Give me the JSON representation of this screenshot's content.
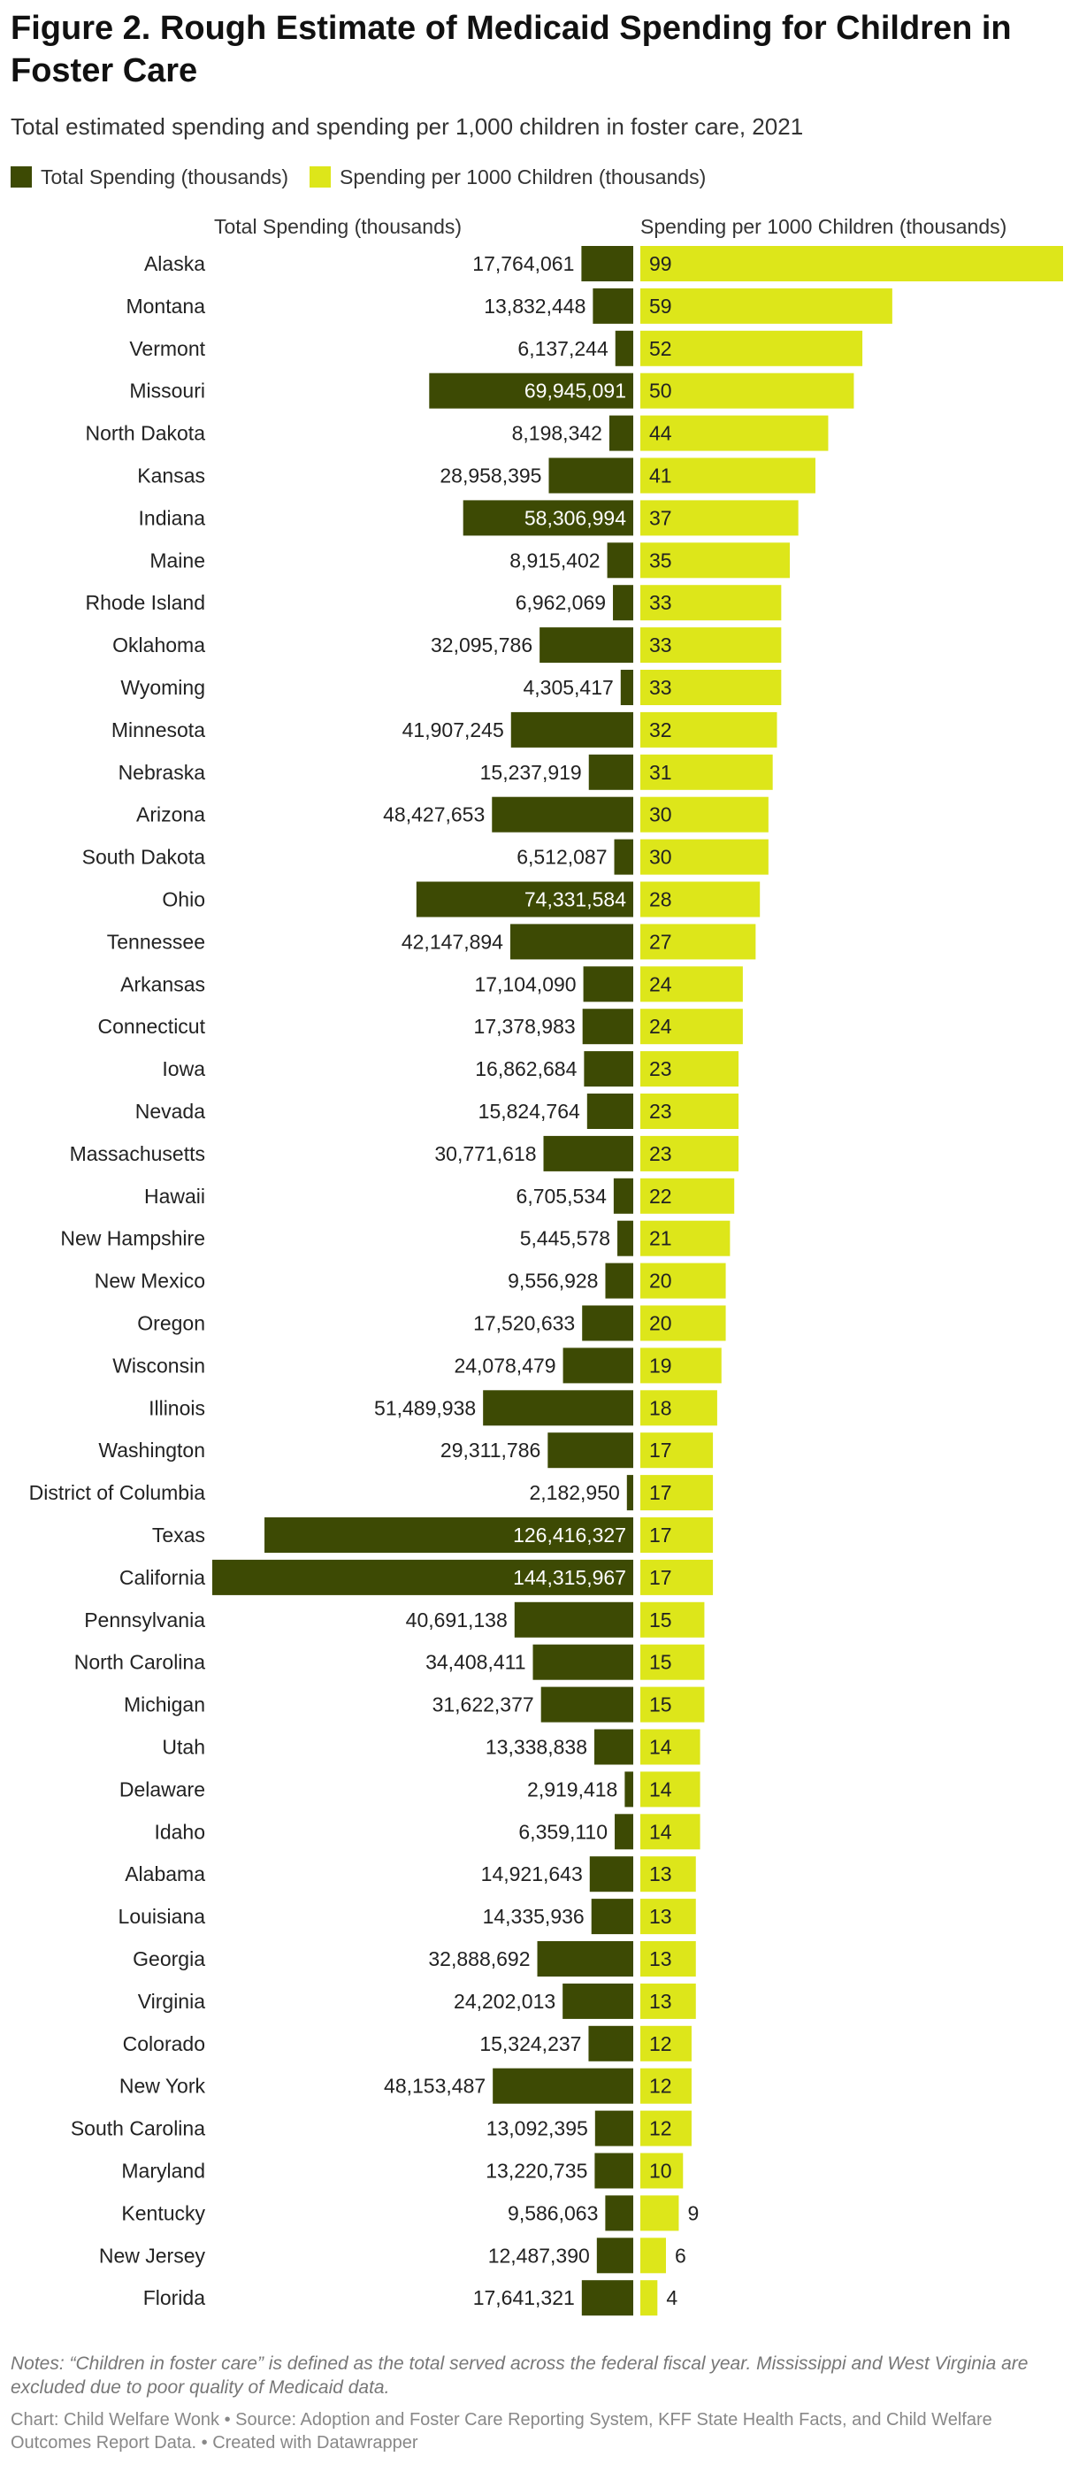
{
  "header": {
    "title": "Figure 2. Rough Estimate of Medicaid Spending for Children in Foster Care",
    "subtitle": "Total estimated spending and spending per 1,000 children in foster care, 2021"
  },
  "colors": {
    "total": "#3d4a04",
    "per1000": "#dde61a",
    "label_on_dark": "#ffffff",
    "label_on_light": "#222222"
  },
  "chart_data": {
    "type": "bar",
    "legend_position": "top-left",
    "grid": false,
    "categories": [
      "Alaska",
      "Montana",
      "Vermont",
      "Missouri",
      "North Dakota",
      "Kansas",
      "Indiana",
      "Maine",
      "Rhode Island",
      "Oklahoma",
      "Wyoming",
      "Minnesota",
      "Nebraska",
      "Arizona",
      "South Dakota",
      "Ohio",
      "Tennessee",
      "Arkansas",
      "Connecticut",
      "Iowa",
      "Nevada",
      "Massachusetts",
      "Hawaii",
      "New Hampshire",
      "New Mexico",
      "Oregon",
      "Wisconsin",
      "Illinois",
      "Washington",
      "District of Columbia",
      "Texas",
      "California",
      "Pennsylvania",
      "North Carolina",
      "Michigan",
      "Utah",
      "Delaware",
      "Idaho",
      "Alabama",
      "Louisiana",
      "Georgia",
      "Virginia",
      "Colorado",
      "New York",
      "South Carolina",
      "Maryland",
      "Kentucky",
      "New Jersey",
      "Florida"
    ],
    "series": [
      {
        "name": "Total Spending (thousands)",
        "values": [
          17764061,
          13832448,
          6137244,
          69945091,
          8198342,
          28958395,
          58306994,
          8915402,
          6962069,
          32095786,
          4305417,
          41907245,
          15237919,
          48427653,
          6512087,
          74331584,
          42147894,
          17104090,
          17378983,
          16862684,
          15824764,
          30771618,
          6705534,
          5445578,
          9556928,
          17520633,
          24078479,
          51489938,
          29311786,
          2182950,
          126416327,
          144315967,
          40691138,
          34408411,
          31622377,
          13338838,
          2919418,
          6359110,
          14921643,
          14335936,
          32888692,
          24202013,
          15324237,
          48153487,
          13092395,
          13220735,
          9586063,
          12487390,
          17641321
        ],
        "labels": [
          "17,764,061",
          "13,832,448",
          "6,137,244",
          "69,945,091",
          "8,198,342",
          "28,958,395",
          "58,306,994",
          "8,915,402",
          "6,962,069",
          "32,095,786",
          "4,305,417",
          "41,907,245",
          "15,237,919",
          "48,427,653",
          "6,512,087",
          "74,331,584",
          "42,147,894",
          "17,104,090",
          "17,378,983",
          "16,862,684",
          "15,824,764",
          "30,771,618",
          "6,705,534",
          "5,445,578",
          "9,556,928",
          "17,520,633",
          "24,078,479",
          "51,489,938",
          "29,311,786",
          "2,182,950",
          "126,416,327",
          "144,315,967",
          "40,691,138",
          "34,408,411",
          "31,622,377",
          "13,338,838",
          "2,919,418",
          "6,359,110",
          "14,921,643",
          "14,335,936",
          "32,888,692",
          "24,202,013",
          "15,324,237",
          "48,153,487",
          "13,092,395",
          "13,220,735",
          "9,586,063",
          "12,487,390",
          "17,641,321"
        ]
      },
      {
        "name": "Spending per 1000 Children (thousands)",
        "values": [
          99,
          59,
          52,
          50,
          44,
          41,
          37,
          35,
          33,
          33,
          33,
          32,
          31,
          30,
          30,
          28,
          27,
          24,
          24,
          23,
          23,
          23,
          22,
          21,
          20,
          20,
          19,
          18,
          17,
          17,
          17,
          17,
          15,
          15,
          15,
          14,
          14,
          14,
          13,
          13,
          13,
          13,
          12,
          12,
          12,
          10,
          9,
          6,
          4
        ],
        "labels": [
          "99",
          "59",
          "52",
          "50",
          "44",
          "41",
          "37",
          "35",
          "33",
          "33",
          "33",
          "32",
          "31",
          "30",
          "30",
          "28",
          "27",
          "24",
          "24",
          "23",
          "23",
          "23",
          "22",
          "21",
          "20",
          "20",
          "19",
          "18",
          "17",
          "17",
          "17",
          "17",
          "15",
          "15",
          "15",
          "14",
          "14",
          "14",
          "13",
          "13",
          "13",
          "13",
          "12",
          "12",
          "12",
          "10",
          "9",
          "6",
          "4"
        ]
      }
    ]
  },
  "footer": {
    "notes": "Notes: “Children in foster care” is defined as the total served across the federal fiscal year. Mississippi and West Virginia are excluded due to poor quality of Medicaid data.",
    "credits": "Chart: Child Welfare Wonk • Source: Adoption and Foster Care Reporting System, KFF State Health Facts, and Child Welfare Outcomes Report Data. • Created with Datawrapper"
  }
}
